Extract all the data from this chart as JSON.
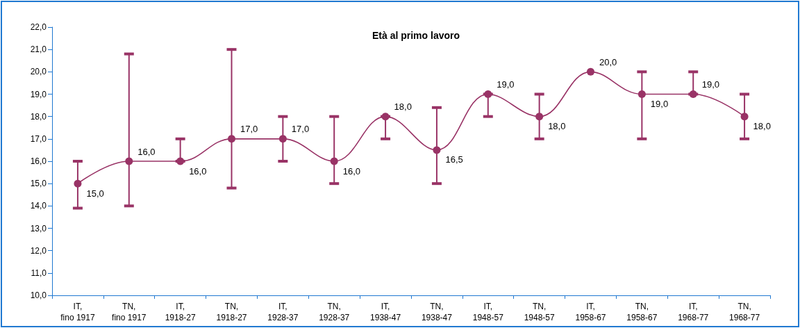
{
  "chart_data": {
    "type": "line",
    "title": "Età al primo lavoro",
    "categories": [
      "IT,\nfino 1917",
      "TN,\nfino 1917",
      "IT,\n1918-27",
      "TN,\n1918-27",
      "IT,\n1928-37",
      "TN,\n1928-37",
      "IT,\n1938-47",
      "TN,\n1938-47",
      "IT,\n1948-57",
      "TN,\n1948-57",
      "IT,\n1958-67",
      "TN,\n1958-67",
      "IT,\n1968-77",
      "TN,\n1968-77"
    ],
    "series": [
      {
        "color": "#993366",
        "values": [
          15,
          16,
          16,
          17,
          17,
          16,
          18,
          16.5,
          19,
          18,
          20,
          19,
          19,
          18
        ],
        "value_labels": [
          "15,0",
          "16,0",
          "16,0",
          "17,0",
          "17,0",
          "16,0",
          "18,0",
          "16,5",
          "19,0",
          "18,0",
          "20,0",
          "19,0",
          "19,0",
          "18,0"
        ],
        "errors": [
          [
            13.9,
            16
          ],
          [
            14,
            20.8
          ],
          [
            16,
            17
          ],
          [
            14.8,
            21
          ],
          [
            16,
            18
          ],
          [
            15,
            18
          ],
          [
            17,
            18
          ],
          [
            15,
            18.4
          ],
          [
            18,
            19
          ],
          [
            17,
            19
          ],
          null,
          [
            17,
            20
          ],
          [
            19,
            20
          ],
          [
            17,
            19
          ]
        ]
      }
    ],
    "ylim": [
      10,
      22
    ],
    "yticks": [
      {
        "value": 10,
        "label": "10,0"
      },
      {
        "value": 11,
        "label": "11,0"
      },
      {
        "value": 12,
        "label": "12,0"
      },
      {
        "value": 13,
        "label": "13,0"
      },
      {
        "value": 14,
        "label": "14,0"
      },
      {
        "value": 15,
        "label": "15,0"
      },
      {
        "value": 16,
        "label": "16,0"
      },
      {
        "value": 17,
        "label": "17,0"
      },
      {
        "value": 18,
        "label": "18,0"
      },
      {
        "value": 19,
        "label": "19,0"
      },
      {
        "value": 20,
        "label": "20,0"
      },
      {
        "value": 21,
        "label": "21,0"
      },
      {
        "value": 22,
        "label": "22,0"
      }
    ],
    "grid": false,
    "marker": "circle",
    "line_style": "solid"
  }
}
